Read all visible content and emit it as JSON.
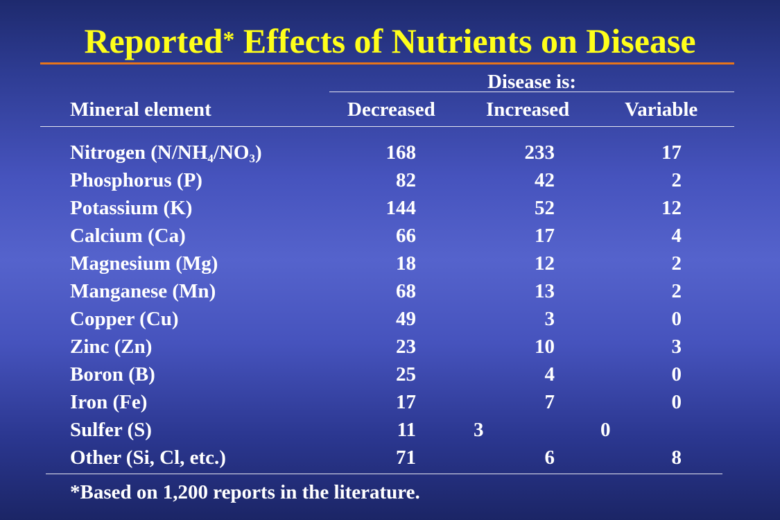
{
  "slide": {
    "title_part1": "Reported",
    "title_star": "*",
    "title_part2": " Effects of Nutrients on Disease"
  },
  "table": {
    "group_header": "Disease is:",
    "columns": {
      "element": "Mineral element",
      "decreased": "Decreased",
      "increased": "Increased",
      "variable": "Variable"
    },
    "nitrogen_parts": {
      "a": "Nitrogen (N/NH",
      "s1": "4",
      "b": "/NO",
      "s2": "3",
      "c": ")"
    },
    "rows": [
      {
        "element": "Nitrogen (N/NH4/NO3)",
        "decreased": "168",
        "increased": "233",
        "variable": "17"
      },
      {
        "element": "Phosphorus (P)",
        "decreased": "82",
        "increased": "42",
        "variable": "2"
      },
      {
        "element": "Potassium (K)",
        "decreased": "144",
        "increased": "52",
        "variable": "12"
      },
      {
        "element": "Calcium (Ca)",
        "decreased": "66",
        "increased": "17",
        "variable": "4"
      },
      {
        "element": "Magnesium (Mg)",
        "decreased": "18",
        "increased": "12",
        "variable": "2"
      },
      {
        "element": "Manganese (Mn)",
        "decreased": "68",
        "increased": "13",
        "variable": "2"
      },
      {
        "element": "Copper (Cu)",
        "decreased": "49",
        "increased": "3",
        "variable": "0"
      },
      {
        "element": "Zinc (Zn)",
        "decreased": "23",
        "increased": "10",
        "variable": "3"
      },
      {
        "element": "Boron (B)",
        "decreased": "25",
        "increased": "4",
        "variable": "0"
      },
      {
        "element": "Iron (Fe)",
        "decreased": "17",
        "increased": "7",
        "variable": "0"
      },
      {
        "element": "Sulfer (S)",
        "decreased": "11",
        "increased": "3",
        "variable": "0"
      },
      {
        "element": "Other (Si, Cl, etc.)",
        "decreased": "71",
        "increased": "6",
        "variable": "8"
      }
    ],
    "footnote": "*Based on 1,200 reports in the literature."
  },
  "colors": {
    "title": "#ffff1a",
    "title_rule": "#e8741a",
    "text": "#ffffff",
    "background_top": "#1e2a6e",
    "background_mid": "#5563cc"
  }
}
